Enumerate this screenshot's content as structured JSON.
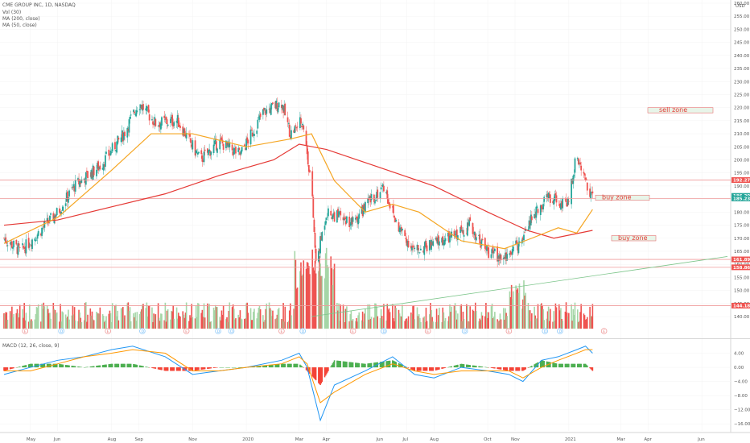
{
  "legend": {
    "symbol": "CME GROUP INC, 1D, NASDAQ",
    "vol": "Vol (30)",
    "ma200": "MA (200, close)",
    "ma50": "MA (50, close)",
    "macd": "MACD (12, 26, close, 9)"
  },
  "currency": "USD",
  "colors": {
    "up": "#26a69a",
    "down": "#ef5350",
    "ma200": "#e53935",
    "ma50": "#f5a623",
    "macd": "#2196f3",
    "signal": "#ff9800",
    "vol_up": "#a5d6a7",
    "vol_down": "#ef5350",
    "level": "#ef9a9a",
    "zone_fill": "#e8f5e9",
    "zone_border": "#e57373"
  },
  "zones": [
    {
      "label": "sell zone",
      "low": 218,
      "high": 220
    },
    {
      "label": "buy zone",
      "low": 184.5,
      "high": 186.5
    },
    {
      "label": "buy zone",
      "low": 169,
      "high": 171
    }
  ],
  "chart_data": [
    {
      "type": "candlestick",
      "title": "CME GROUP INC, 1D, NASDAQ",
      "ylabel": "USD",
      "ylim": [
        130,
        260
      ],
      "y_ticks": [
        140,
        145,
        150,
        155,
        160,
        165,
        170,
        175,
        180,
        185,
        190,
        195,
        200,
        205,
        210,
        215,
        220,
        225,
        230,
        235,
        240,
        245,
        250,
        255,
        260
      ],
      "y_tick_labels": [
        "140.00",
        "145.00",
        "150.00",
        "155.00",
        "160.00",
        "165.00",
        "170.00",
        "175.00",
        "180.00",
        "185.00",
        "190.00",
        "195.00",
        "200.00",
        "205.00",
        "210.00",
        "215.00",
        "220.00",
        "225.00",
        "230.00",
        "235.00",
        "240.00",
        "245.00",
        "250.00",
        "255.00",
        "260.00"
      ],
      "x_ticks": [
        "May",
        "Jun",
        "Aug",
        "Sep",
        "Nov",
        "2020",
        "Mar",
        "Apr",
        "Jun",
        "Jul",
        "Aug",
        "Oct",
        "Nov",
        "2021",
        "Mar",
        "Apr",
        "Jun"
      ],
      "price_tags": [
        "192.27",
        "186.20",
        "185.23",
        "161.89",
        "158.86",
        "144.18"
      ],
      "close_path": {
        "x": [
          "2019-04-01",
          "2019-04-20",
          "2019-05-10",
          "2019-06-01",
          "2019-06-20",
          "2019-07-20",
          "2019-08-15",
          "2019-09-01",
          "2019-09-20",
          "2019-10-15",
          "2019-11-10",
          "2019-12-01",
          "2019-12-25",
          "2020-01-20",
          "2020-02-10",
          "2020-02-20",
          "2020-03-05",
          "2020-03-15",
          "2020-03-20",
          "2020-04-01",
          "2020-04-15",
          "2020-05-01",
          "2020-05-20",
          "2020-06-05",
          "2020-06-20",
          "2020-07-10",
          "2020-08-01",
          "2020-08-20",
          "2020-09-10",
          "2020-10-01",
          "2020-10-20",
          "2020-11-05",
          "2020-11-20",
          "2020-12-10",
          "2020-12-30",
          "2021-01-10",
          "2021-01-20",
          "2021-01-28"
        ],
        "y": [
          170,
          165,
          172,
          180,
          190,
          198,
          210,
          222,
          214,
          215,
          200,
          207,
          202,
          218,
          222,
          210,
          215,
          190,
          160,
          180,
          178,
          176,
          184,
          190,
          175,
          165,
          168,
          170,
          175,
          165,
          162,
          168,
          178,
          186,
          182,
          202,
          192,
          186
        ]
      },
      "ma50": {
        "x": [
          "2019-04-01",
          "2019-06-01",
          "2019-08-01",
          "2019-09-15",
          "2019-11-01",
          "2020-01-01",
          "2020-02-20",
          "2020-03-15",
          "2020-04-10",
          "2020-05-15",
          "2020-06-15",
          "2020-07-15",
          "2020-09-01",
          "2020-10-20",
          "2020-11-20",
          "2020-12-20",
          "2021-01-10",
          "2021-01-28"
        ],
        "y": [
          168,
          178,
          196,
          210,
          210,
          205,
          208,
          210,
          192,
          180,
          183,
          180,
          169,
          166,
          170,
          174,
          172,
          181
        ]
      },
      "ma200": {
        "x": [
          "2019-04-01",
          "2019-06-01",
          "2019-08-01",
          "2019-10-01",
          "2019-12-01",
          "2020-02-01",
          "2020-03-01",
          "2020-04-01",
          "2020-06-01",
          "2020-08-01",
          "2020-10-01",
          "2020-11-15",
          "2020-12-15",
          "2021-01-28"
        ],
        "y": [
          175,
          177,
          182,
          187,
          194,
          200,
          206,
          204,
          197,
          190,
          180,
          173,
          170,
          173
        ]
      },
      "levels": [
        192.27,
        185.23,
        161.89,
        158.86,
        144.18
      ],
      "trendline": {
        "x": [
          "2020-03-15",
          "2021-06-30"
        ],
        "y": [
          140,
          163
        ]
      },
      "volume_overlay": true
    },
    {
      "type": "line",
      "title": "MACD (12, 26, close, 9)",
      "ylim": [
        -18,
        8
      ],
      "y_ticks": [
        4,
        0,
        -4,
        -8,
        -12,
        -16
      ],
      "y_tick_labels": [
        "4.00",
        "0.00",
        "−4.00",
        "−8.00",
        "−12.00",
        "−16.00"
      ],
      "x": [
        "2019-04-01",
        "2019-05-01",
        "2019-06-01",
        "2019-07-01",
        "2019-08-01",
        "2019-08-25",
        "2019-10-01",
        "2019-11-01",
        "2019-12-01",
        "2020-01-01",
        "2020-02-10",
        "2020-03-01",
        "2020-03-10",
        "2020-03-25",
        "2020-04-10",
        "2020-05-15",
        "2020-06-15",
        "2020-07-10",
        "2020-08-01",
        "2020-09-01",
        "2020-10-01",
        "2020-10-25",
        "2020-11-10",
        "2020-12-01",
        "2020-12-20",
        "2021-01-10",
        "2021-01-20",
        "2021-01-28"
      ],
      "series": [
        {
          "name": "MACD",
          "values": [
            -2,
            0,
            2,
            3,
            5,
            6,
            3,
            -2,
            -1,
            0,
            2,
            4,
            0,
            -15,
            -5,
            -1,
            3,
            -2,
            -3,
            0,
            -1,
            -2,
            -4,
            2,
            3,
            5,
            6,
            4
          ]
        },
        {
          "name": "Signal",
          "values": [
            -1,
            -1,
            1,
            3,
            4,
            5,
            4,
            -1,
            -1,
            0,
            1,
            3,
            1,
            -10,
            -7,
            -2,
            1,
            -1,
            -2,
            -1,
            -1,
            -1,
            -3,
            0,
            2,
            4,
            5,
            5
          ]
        }
      ]
    }
  ],
  "event_markers": [
    {
      "t": "E",
      "date": "2019-04-25"
    },
    {
      "t": "D",
      "date": "2019-06-05"
    },
    {
      "t": "E",
      "date": "2019-07-28"
    },
    {
      "t": "D",
      "date": "2019-09-05"
    },
    {
      "t": "E",
      "date": "2019-10-25"
    },
    {
      "t": "D",
      "date": "2019-11-30"
    },
    {
      "t": "D",
      "date": "2019-12-15"
    },
    {
      "t": "E",
      "date": "2020-02-10"
    },
    {
      "t": "D",
      "date": "2020-03-05"
    },
    {
      "t": "E",
      "date": "2020-05-01"
    },
    {
      "t": "D",
      "date": "2020-06-05"
    },
    {
      "t": "E",
      "date": "2020-07-25"
    },
    {
      "t": "D",
      "date": "2020-09-05"
    },
    {
      "t": "E",
      "date": "2020-10-25"
    },
    {
      "t": "D",
      "date": "2020-12-05"
    },
    {
      "t": "D",
      "date": "2020-12-22"
    },
    {
      "t": "E",
      "date": "2021-02-10"
    }
  ]
}
